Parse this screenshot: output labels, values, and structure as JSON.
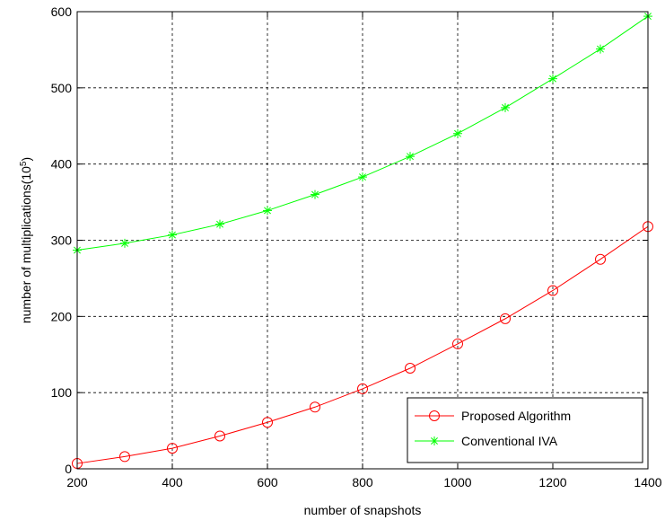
{
  "chart_data": {
    "type": "line",
    "title": "",
    "xlabel": "number of snapshots",
    "ylabel": "number of multiplications(10",
    "ylabel_superscript": "5",
    "ylabel_suffix": ")",
    "xlim": [
      200,
      1400
    ],
    "ylim": [
      0,
      600
    ],
    "xticks": [
      200,
      400,
      600,
      800,
      1000,
      1200,
      1400
    ],
    "yticks": [
      0,
      100,
      200,
      300,
      400,
      500,
      600
    ],
    "xtick_labels": [
      "200",
      "400",
      "600",
      "800",
      "1000",
      "1200",
      "1400"
    ],
    "ytick_labels": [
      "0",
      "100",
      "200",
      "300",
      "400",
      "500",
      "600"
    ],
    "grid": true,
    "legend_position": "bottom-right",
    "x": [
      200,
      300,
      400,
      500,
      600,
      700,
      800,
      900,
      1000,
      1100,
      1200,
      1300,
      1400
    ],
    "series": [
      {
        "name": "Proposed Algorithm",
        "color": "#ff0000",
        "marker": "circle",
        "values": [
          7,
          16,
          27,
          43,
          61,
          81,
          105,
          132,
          164,
          197,
          234,
          275,
          318
        ]
      },
      {
        "name": "Conventional IVA",
        "color": "#00ff00",
        "marker": "star",
        "values": [
          287,
          296,
          307,
          321,
          339,
          360,
          383,
          410,
          440,
          474,
          512,
          551,
          594
        ]
      }
    ]
  }
}
